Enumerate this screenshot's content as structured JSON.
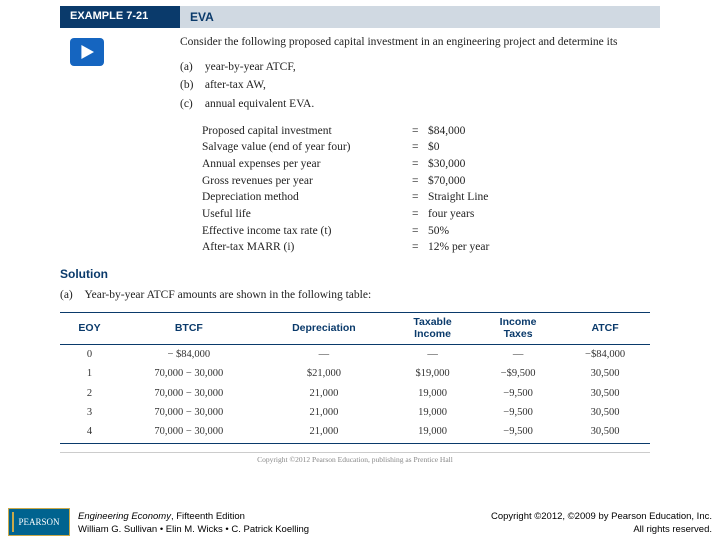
{
  "header": {
    "example_label": "EXAMPLE 7-21",
    "title": "EVA"
  },
  "intro": "Consider the following proposed capital investment in an engineering project and determine its",
  "questions": [
    {
      "tag": "(a)",
      "text": "year-by-year ATCF,"
    },
    {
      "tag": "(b)",
      "text": "after-tax AW,"
    },
    {
      "tag": "(c)",
      "text": "annual equivalent EVA."
    }
  ],
  "params": [
    {
      "label": "Proposed capital investment",
      "value": "$84,000"
    },
    {
      "label": "Salvage value (end of year four)",
      "value": "$0"
    },
    {
      "label": "Annual expenses per year",
      "value": "$30,000"
    },
    {
      "label": "Gross revenues per year",
      "value": "$70,000"
    },
    {
      "label": "Depreciation method",
      "value": "Straight Line"
    },
    {
      "label": "Useful life",
      "value": "four years"
    },
    {
      "label": "Effective income tax rate (t)",
      "value": "50%"
    },
    {
      "label": "After-tax MARR (i)",
      "value": "12% per year"
    }
  ],
  "solution": {
    "heading": "Solution",
    "line_tag": "(a)",
    "line_text": "Year-by-year ATCF amounts are shown in the following table:"
  },
  "table": {
    "columns": [
      "EOY",
      "BTCF",
      "Depreciation",
      "Taxable Income",
      "Income Taxes",
      "ATCF"
    ],
    "rows": [
      [
        "0",
        "− $84,000",
        "—",
        "—",
        "—",
        "−$84,000"
      ],
      [
        "1",
        "70,000 − 30,000",
        "$21,000",
        "$19,000",
        "−$9,500",
        "30,500"
      ],
      [
        "2",
        "70,000 − 30,000",
        "21,000",
        "19,000",
        "−9,500",
        "30,500"
      ],
      [
        "3",
        "70,000 − 30,000",
        "21,000",
        "19,000",
        "−9,500",
        "30,500"
      ],
      [
        "4",
        "70,000 − 30,000",
        "21,000",
        "19,000",
        "−9,500",
        "30,500"
      ]
    ]
  },
  "inner_copyright": "Copyright ©2012 Pearson Education, publishing as Prentice Hall",
  "footer": {
    "logo_text": "PEARSON",
    "book_title": "Engineering Economy",
    "edition": ", Fifteenth Edition",
    "authors": "William G. Sullivan • Elin M. Wicks • C. Patrick Koelling",
    "copyright_line1": "Copyright ©2012, ©2009 by Pearson Education, Inc.",
    "copyright_line2": "All rights reserved."
  },
  "colors": {
    "brand_blue": "#0a3a6b",
    "light_blue_bg": "#d0d9e2",
    "play_blue": "#1565c0",
    "pearson_bg": "#00638f"
  }
}
